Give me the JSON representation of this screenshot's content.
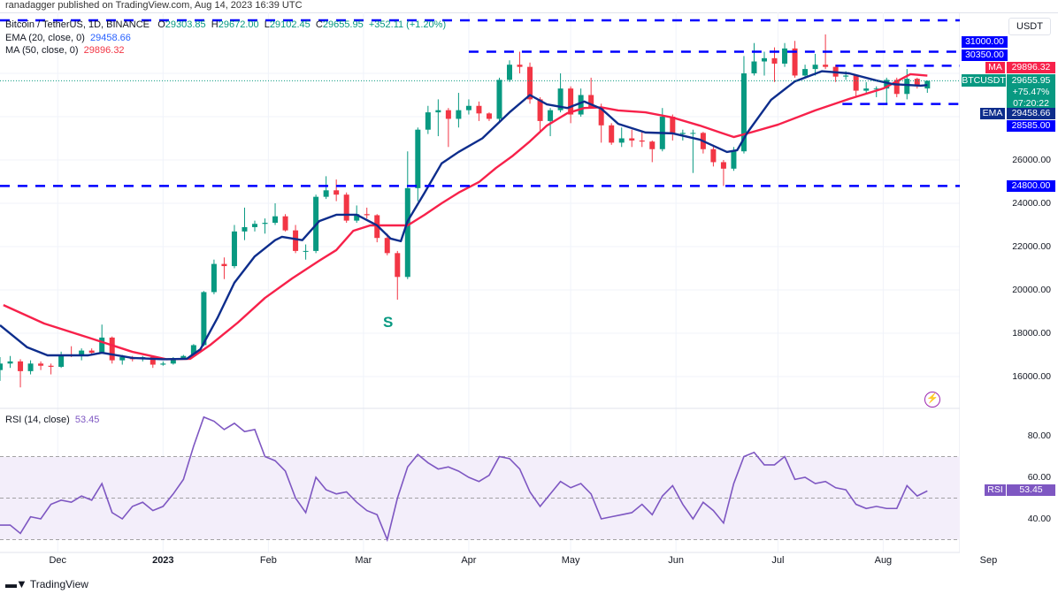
{
  "published": "ranadagger published on TradingView.com, Aug 14, 2023 16:39 UTC",
  "legend": {
    "symbol": "Bitcoin / TetherUS, 1D, BINANCE",
    "o_label": "O",
    "o": "29303.85",
    "h_label": "H",
    "h": "29672.00",
    "l_label": "L",
    "l": "29102.45",
    "c_label": "C",
    "c": "29655.95",
    "change": "+352.11 (+1.20%)",
    "ema_label": "EMA (20, close, 0)",
    "ema_value": "29458.66",
    "ma_label": "MA (50, close, 0)",
    "ma_value": "29896.32",
    "rsi_label": "RSI (14, close)",
    "rsi_value": "53.45"
  },
  "currency": "USDT",
  "annotation": "S",
  "footer": "TradingView",
  "colors": {
    "up": "#089981",
    "down": "#f23645",
    "ema": "#0d2d8c",
    "ma": "#f7214a",
    "levels": "#0000ff",
    "rsi": "#7e57c2",
    "rsi_band": "#f3eefa"
  },
  "price_axis": {
    "ticks": [
      "16000.00",
      "18000.00",
      "20000.00",
      "22000.00",
      "24000.00",
      "26000.00"
    ],
    "tags": {
      "l31000": "31000.00",
      "l30350": "30350.00",
      "ma_tag": "MA",
      "ma": "29896.32",
      "sym_tag": "BTCUSDT",
      "last": "29655.95",
      "last_pct": "+75.47%",
      "countdown": "07:20:22",
      "ema_tag": "EMA",
      "ema": "29458.66",
      "l28585": "28585.00",
      "l24800": "24800.00"
    }
  },
  "rsi_axis": {
    "ticks": [
      "80.00",
      "60.00",
      "40.00"
    ],
    "tag": "RSI",
    "value": "53.45"
  },
  "x_axis": [
    "Dec",
    "2023",
    "Feb",
    "Mar",
    "Apr",
    "May",
    "Jun",
    "Jul",
    "Aug",
    "Sep"
  ],
  "chart_data": {
    "type": "candlestick",
    "ylim": [
      15000,
      33000
    ],
    "x_ticks": [
      [
        "2022-12-01",
        "Dec"
      ],
      [
        "2023-01-01",
        "2023"
      ],
      [
        "2023-02-01",
        "Feb"
      ],
      [
        "2023-03-01",
        "Mar"
      ],
      [
        "2023-04-01",
        "Apr"
      ],
      [
        "2023-05-01",
        "May"
      ],
      [
        "2023-06-01",
        "Jun"
      ],
      [
        "2023-07-01",
        "Jul"
      ],
      [
        "2023-08-01",
        "Aug"
      ],
      [
        "2023-09-01",
        "Sep"
      ]
    ],
    "levels": [
      {
        "price": 32450,
        "from": "2022-11-14"
      },
      {
        "price": 31000,
        "from": "2023-04-01"
      },
      {
        "price": 30350,
        "from": "2023-07-18"
      },
      {
        "price": 28585,
        "from": "2023-07-20"
      },
      {
        "price": 24800,
        "from": "2022-11-14"
      }
    ],
    "candles": [
      [
        "2022-11-14",
        16300,
        16900,
        15800,
        16600
      ],
      [
        "2022-11-17",
        16600,
        16950,
        16400,
        16700
      ],
      [
        "2022-11-20",
        16700,
        16800,
        15500,
        16250
      ],
      [
        "2022-11-23",
        16250,
        16750,
        16100,
        16600
      ],
      [
        "2022-11-26",
        16600,
        16700,
        16300,
        16500
      ],
      [
        "2022-11-29",
        16500,
        16600,
        16100,
        16450
      ],
      [
        "2022-12-02",
        16450,
        17150,
        16400,
        17000
      ],
      [
        "2022-12-05",
        17000,
        17400,
        16900,
        16950
      ],
      [
        "2022-12-08",
        16950,
        17300,
        16750,
        17200
      ],
      [
        "2022-12-11",
        17200,
        17300,
        17000,
        17100
      ],
      [
        "2022-12-14",
        17100,
        18400,
        17050,
        17800
      ],
      [
        "2022-12-17",
        17800,
        17850,
        16600,
        16750
      ],
      [
        "2022-12-20",
        16750,
        17000,
        16550,
        16900
      ],
      [
        "2022-12-23",
        16900,
        16950,
        16700,
        16800
      ],
      [
        "2022-12-26",
        16800,
        16950,
        16700,
        16900
      ],
      [
        "2022-12-29",
        16900,
        16950,
        16400,
        16550
      ],
      [
        "2023-01-01",
        16550,
        16700,
        16500,
        16600
      ],
      [
        "2023-01-04",
        16600,
        16900,
        16550,
        16850
      ],
      [
        "2023-01-07",
        16850,
        17000,
        16800,
        16950
      ],
      [
        "2023-01-10",
        16950,
        17500,
        16900,
        17450
      ],
      [
        "2023-01-13",
        17450,
        19950,
        17400,
        19900
      ],
      [
        "2023-01-16",
        19900,
        21400,
        19800,
        21200
      ],
      [
        "2023-01-19",
        21200,
        21500,
        20500,
        21100
      ],
      [
        "2023-01-22",
        21100,
        23000,
        21000,
        22700
      ],
      [
        "2023-01-25",
        22700,
        23800,
        22300,
        22900
      ],
      [
        "2023-01-28",
        22900,
        23200,
        22700,
        23050
      ],
      [
        "2023-01-31",
        23050,
        23300,
        22600,
        23100
      ],
      [
        "2023-02-03",
        23100,
        24000,
        23000,
        23400
      ],
      [
        "2023-02-06",
        23400,
        23500,
        22700,
        22750
      ],
      [
        "2023-02-09",
        22750,
        23000,
        21700,
        21800
      ],
      [
        "2023-02-12",
        21800,
        22100,
        21400,
        21800
      ],
      [
        "2023-02-15",
        21800,
        24400,
        21700,
        24300
      ],
      [
        "2023-02-18",
        24300,
        25250,
        24200,
        24600
      ],
      [
        "2023-02-21",
        24600,
        25100,
        24100,
        24400
      ],
      [
        "2023-02-24",
        24400,
        24500,
        23100,
        23200
      ],
      [
        "2023-02-27",
        23200,
        23900,
        23100,
        23500
      ],
      [
        "2023-03-02",
        23500,
        23800,
        23300,
        23450
      ],
      [
        "2023-03-05",
        23450,
        23500,
        22200,
        22400
      ],
      [
        "2023-03-08",
        22400,
        22600,
        21600,
        21700
      ],
      [
        "2023-03-11",
        21700,
        21800,
        19550,
        20600
      ],
      [
        "2023-03-14",
        20600,
        26400,
        20500,
        24700
      ],
      [
        "2023-03-17",
        24700,
        27500,
        24100,
        27400
      ],
      [
        "2023-03-20",
        27400,
        28500,
        27200,
        28200
      ],
      [
        "2023-03-23",
        28200,
        28800,
        27100,
        28300
      ],
      [
        "2023-03-26",
        28300,
        28400,
        26600,
        27900
      ],
      [
        "2023-03-29",
        27900,
        29100,
        27500,
        28300
      ],
      [
        "2023-04-01",
        28300,
        28800,
        28100,
        28500
      ],
      [
        "2023-04-04",
        28500,
        28700,
        27800,
        28150
      ],
      [
        "2023-04-07",
        28150,
        28200,
        27800,
        27900
      ],
      [
        "2023-04-10",
        27900,
        29800,
        27800,
        29700
      ],
      [
        "2023-04-13",
        29700,
        30600,
        29600,
        30400
      ],
      [
        "2023-04-16",
        30400,
        31000,
        30000,
        30300
      ],
      [
        "2023-04-19",
        30300,
        30500,
        28600,
        28800
      ],
      [
        "2023-04-22",
        28800,
        28900,
        27300,
        27800
      ],
      [
        "2023-04-25",
        27800,
        28400,
        27100,
        28300
      ],
      [
        "2023-04-28",
        28300,
        30000,
        28200,
        29300
      ],
      [
        "2023-05-01",
        29300,
        29400,
        27700,
        28100
      ],
      [
        "2023-05-04",
        28100,
        29300,
        28000,
        29000
      ],
      [
        "2023-05-07",
        29000,
        29800,
        28400,
        28400
      ],
      [
        "2023-05-10",
        28400,
        28600,
        26800,
        27600
      ],
      [
        "2023-05-13",
        27600,
        27700,
        26700,
        26800
      ],
      [
        "2023-05-16",
        26800,
        27500,
        26600,
        27000
      ],
      [
        "2023-05-19",
        27000,
        27400,
        26600,
        26900
      ],
      [
        "2023-05-22",
        26900,
        27300,
        26600,
        26850
      ],
      [
        "2023-05-25",
        26850,
        26900,
        25900,
        26500
      ],
      [
        "2023-05-28",
        26500,
        28400,
        26400,
        28000
      ],
      [
        "2023-05-31",
        28000,
        28100,
        26900,
        27200
      ],
      [
        "2023-06-03",
        27200,
        27400,
        26900,
        27250
      ],
      [
        "2023-06-06",
        27250,
        27400,
        25400,
        27250
      ],
      [
        "2023-06-09",
        27250,
        27300,
        26300,
        26500
      ],
      [
        "2023-06-12",
        26500,
        26700,
        25700,
        25900
      ],
      [
        "2023-06-15",
        25900,
        26000,
        24800,
        25600
      ],
      [
        "2023-06-18",
        25600,
        26600,
        25500,
        26400
      ],
      [
        "2023-06-21",
        26400,
        30800,
        26300,
        30000
      ],
      [
        "2023-06-24",
        30000,
        31400,
        29900,
        30550
      ],
      [
        "2023-06-27",
        30550,
        31000,
        29900,
        30700
      ],
      [
        "2023-06-30",
        30700,
        31200,
        29600,
        30450
      ],
      [
        "2023-07-03",
        30450,
        31400,
        30300,
        31150
      ],
      [
        "2023-07-06",
        31150,
        31500,
        29800,
        29900
      ],
      [
        "2023-07-09",
        29900,
        30400,
        29800,
        30200
      ],
      [
        "2023-07-12",
        30200,
        30900,
        29900,
        30400
      ],
      [
        "2023-07-15",
        30400,
        31800,
        30200,
        30300
      ],
      [
        "2023-07-18",
        30300,
        30400,
        29600,
        29850
      ],
      [
        "2023-07-21",
        29850,
        30100,
        29700,
        29900
      ],
      [
        "2023-07-24",
        29900,
        29950,
        28900,
        29200
      ],
      [
        "2023-07-27",
        29200,
        29600,
        29100,
        29300
      ],
      [
        "2023-07-30",
        29300,
        29400,
        28900,
        29300
      ],
      [
        "2023-08-02",
        29300,
        29800,
        28600,
        29700
      ],
      [
        "2023-08-05",
        29700,
        29800,
        28900,
        29050
      ],
      [
        "2023-08-08",
        29050,
        30200,
        28800,
        29750
      ],
      [
        "2023-08-11",
        29750,
        29800,
        29300,
        29400
      ],
      [
        "2023-08-14",
        29303.85,
        29672,
        29102.45,
        29655.95
      ]
    ],
    "ema20": [
      [
        "2022-11-14",
        18370
      ],
      [
        "2022-11-22",
        17350
      ],
      [
        "2022-11-28",
        16980
      ],
      [
        "2022-12-10",
        16980
      ],
      [
        "2022-12-14",
        17100
      ],
      [
        "2022-12-23",
        16860
      ],
      [
        "2023-01-01",
        16800
      ],
      [
        "2023-01-08",
        16820
      ],
      [
        "2023-01-12",
        17260
      ],
      [
        "2023-01-17",
        18700
      ],
      [
        "2023-01-22",
        20330
      ],
      [
        "2023-01-28",
        21550
      ],
      [
        "2023-02-03",
        22300
      ],
      [
        "2023-02-05",
        22450
      ],
      [
        "2023-02-11",
        22300
      ],
      [
        "2023-02-16",
        23180
      ],
      [
        "2023-02-21",
        23470
      ],
      [
        "2023-02-27",
        23470
      ],
      [
        "2023-03-05",
        22980
      ],
      [
        "2023-03-09",
        22370
      ],
      [
        "2023-03-12",
        22250
      ],
      [
        "2023-03-14",
        23180
      ],
      [
        "2023-03-19",
        24490
      ],
      [
        "2023-03-24",
        25840
      ],
      [
        "2023-03-29",
        26370
      ],
      [
        "2023-04-05",
        27000
      ],
      [
        "2023-04-13",
        28200
      ],
      [
        "2023-04-19",
        29000
      ],
      [
        "2023-04-24",
        28570
      ],
      [
        "2023-04-30",
        28400
      ],
      [
        "2023-05-05",
        28700
      ],
      [
        "2023-05-10",
        28370
      ],
      [
        "2023-05-15",
        27670
      ],
      [
        "2023-05-23",
        27270
      ],
      [
        "2023-05-31",
        27230
      ],
      [
        "2023-06-08",
        26940
      ],
      [
        "2023-06-16",
        26370
      ],
      [
        "2023-06-19",
        26450
      ],
      [
        "2023-06-22",
        27260
      ],
      [
        "2023-06-29",
        28780
      ],
      [
        "2023-07-06",
        29630
      ],
      [
        "2023-07-14",
        30100
      ],
      [
        "2023-07-22",
        30000
      ],
      [
        "2023-07-30",
        29670
      ],
      [
        "2023-08-04",
        29500
      ],
      [
        "2023-08-12",
        29430
      ],
      [
        "2023-08-14",
        29458.66
      ]
    ],
    "ma50": [
      [
        "2022-11-15",
        19300
      ],
      [
        "2022-11-27",
        18450
      ],
      [
        "2022-12-10",
        17800
      ],
      [
        "2022-12-23",
        17140
      ],
      [
        "2023-01-02",
        16800
      ],
      [
        "2023-01-09",
        16820
      ],
      [
        "2023-01-15",
        17470
      ],
      [
        "2023-01-23",
        18490
      ],
      [
        "2023-01-31",
        19630
      ],
      [
        "2023-02-08",
        20530
      ],
      [
        "2023-02-16",
        21350
      ],
      [
        "2023-02-21",
        21840
      ],
      [
        "2023-02-26",
        22730
      ],
      [
        "2023-03-03",
        22980
      ],
      [
        "2023-03-14",
        22980
      ],
      [
        "2023-03-19",
        23470
      ],
      [
        "2023-03-24",
        24000
      ],
      [
        "2023-03-29",
        24490
      ],
      [
        "2023-04-04",
        24980
      ],
      [
        "2023-04-09",
        25630
      ],
      [
        "2023-04-14",
        26200
      ],
      [
        "2023-04-19",
        26860
      ],
      [
        "2023-04-24",
        27590
      ],
      [
        "2023-04-30",
        28160
      ],
      [
        "2023-05-05",
        28400
      ],
      [
        "2023-05-10",
        28430
      ],
      [
        "2023-05-15",
        28290
      ],
      [
        "2023-05-23",
        28200
      ],
      [
        "2023-05-31",
        27960
      ],
      [
        "2023-06-08",
        27590
      ],
      [
        "2023-06-14",
        27270
      ],
      [
        "2023-06-18",
        27060
      ],
      [
        "2023-06-23",
        27270
      ],
      [
        "2023-07-01",
        27630
      ],
      [
        "2023-07-12",
        28290
      ],
      [
        "2023-07-22",
        28820
      ],
      [
        "2023-08-01",
        29300
      ],
      [
        "2023-08-09",
        29960
      ],
      [
        "2023-08-14",
        29896.32
      ]
    ],
    "rsi14": [
      37,
      37,
      33,
      41,
      40,
      47,
      49,
      48,
      51,
      49,
      57,
      43,
      40,
      46,
      48,
      44,
      46,
      52,
      59,
      75,
      89,
      87,
      83,
      86,
      82,
      83,
      70,
      68,
      63,
      50,
      43,
      60,
      54,
      52,
      53,
      48,
      44,
      42,
      30,
      50,
      65,
      71,
      67,
      64,
      65,
      63,
      60,
      58,
      61,
      70,
      69,
      64,
      53,
      46,
      52,
      58,
      55,
      57,
      52,
      40,
      41,
      42,
      43,
      47,
      42,
      51,
      56,
      47,
      40,
      48,
      44,
      38,
      57,
      70,
      72,
      66,
      66,
      70,
      59,
      60,
      57,
      58,
      55,
      54,
      47,
      45,
      46,
      45,
      45,
      56,
      51,
      53.45
    ],
    "rsi_levels": [
      70,
      50,
      30
    ],
    "rsi_ylim": [
      25,
      95
    ]
  }
}
